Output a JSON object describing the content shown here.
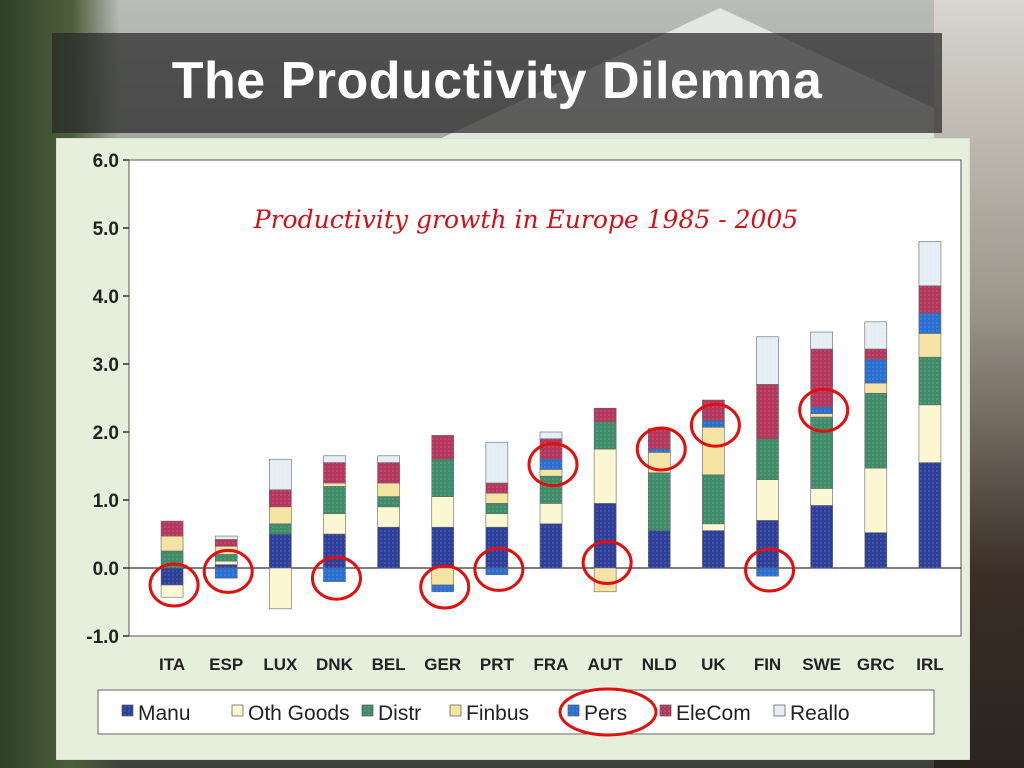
{
  "slide": {
    "title": "The Productivity Dilemma"
  },
  "chart_data": {
    "type": "bar",
    "stacked": true,
    "title": "Productivity growth in Europe 1985  - 2005",
    "categories": [
      "ITA",
      "ESP",
      "LUX",
      "DNK",
      "BEL",
      "GER",
      "PRT",
      "FRA",
      "AUT",
      "NLD",
      "UK",
      "FIN",
      "SWE",
      "GRC",
      "IRL"
    ],
    "ylim": [
      -1.0,
      6.0
    ],
    "yticks": [
      "-1.0",
      "0.0",
      "1.0",
      "2.0",
      "3.0",
      "4.0",
      "5.0",
      "6.0"
    ],
    "ytick_values": [
      -1,
      0,
      1,
      2,
      3,
      4,
      5,
      6
    ],
    "legend_position": "bottom",
    "series": [
      {
        "name": "Manu",
        "color": "#2e3f9a",
        "pattern": "dots",
        "values": [
          -0.25,
          0.05,
          0.5,
          0.5,
          0.6,
          0.6,
          0.6,
          0.65,
          0.95,
          0.55,
          0.55,
          0.7,
          0.92,
          0.52,
          1.55
        ]
      },
      {
        "name": "Oth Goods",
        "color": "#fbf7d2",
        "pattern": "solid",
        "values": [
          -0.18,
          0.05,
          -0.6,
          0.3,
          0.3,
          0.45,
          0.2,
          0.3,
          0.8,
          0.0,
          0.1,
          0.6,
          0.25,
          0.95,
          0.85
        ]
      },
      {
        "name": "Distr",
        "color": "#3f8c6a",
        "pattern": "dots",
        "values": [
          0.25,
          0.1,
          0.15,
          0.4,
          0.15,
          0.55,
          0.15,
          0.4,
          0.4,
          0.85,
          0.72,
          0.6,
          1.05,
          1.1,
          0.7
        ]
      },
      {
        "name": "Finbus",
        "color": "#f5e4a3",
        "pattern": "solid",
        "values": [
          0.22,
          0.12,
          0.25,
          0.05,
          0.2,
          -0.25,
          0.15,
          0.1,
          -0.35,
          0.3,
          0.7,
          0.0,
          0.05,
          0.15,
          0.35
        ]
      },
      {
        "name": "Pers",
        "color": "#2a6fd2",
        "pattern": "dots",
        "values": [
          0.0,
          -0.15,
          0.0,
          -0.2,
          0.0,
          -0.1,
          -0.1,
          0.15,
          0.0,
          0.05,
          0.1,
          -0.12,
          0.1,
          0.35,
          0.3
        ]
      },
      {
        "name": "EleCom",
        "color": "#b5365e",
        "pattern": "dots",
        "values": [
          0.22,
          0.1,
          0.25,
          0.3,
          0.3,
          0.35,
          0.15,
          0.3,
          0.2,
          0.3,
          0.3,
          0.8,
          0.85,
          0.15,
          0.4
        ]
      },
      {
        "name": "Reallo",
        "color": "#e6eef5",
        "pattern": "dots",
        "values": [
          0.0,
          0.05,
          0.45,
          0.1,
          0.1,
          0.0,
          0.6,
          0.1,
          0.0,
          0.0,
          0.0,
          0.7,
          0.25,
          0.4,
          0.65
        ]
      }
    ],
    "highlighted": [
      {
        "category": "ITA",
        "value": -0.25
      },
      {
        "category": "ESP",
        "value": -0.05
      },
      {
        "category": "DNK",
        "value": -0.15
      },
      {
        "category": "GER",
        "value": -0.28
      },
      {
        "category": "PRT",
        "value": -0.02
      },
      {
        "category": "FRA",
        "value": 1.52
      },
      {
        "category": "AUT",
        "value": 0.08
      },
      {
        "category": "NLD",
        "value": 1.75
      },
      {
        "category": "UK",
        "value": 2.1
      },
      {
        "category": "FIN",
        "value": -0.03
      },
      {
        "category": "SWE",
        "value": 2.32
      },
      {
        "category": "legend",
        "value": "Pers"
      }
    ]
  },
  "colors": {
    "highlight_circle": "#e01010",
    "title_text": "#d0101a",
    "panel_bg": "#e6eedc",
    "plot_bg": "#ffffff"
  }
}
